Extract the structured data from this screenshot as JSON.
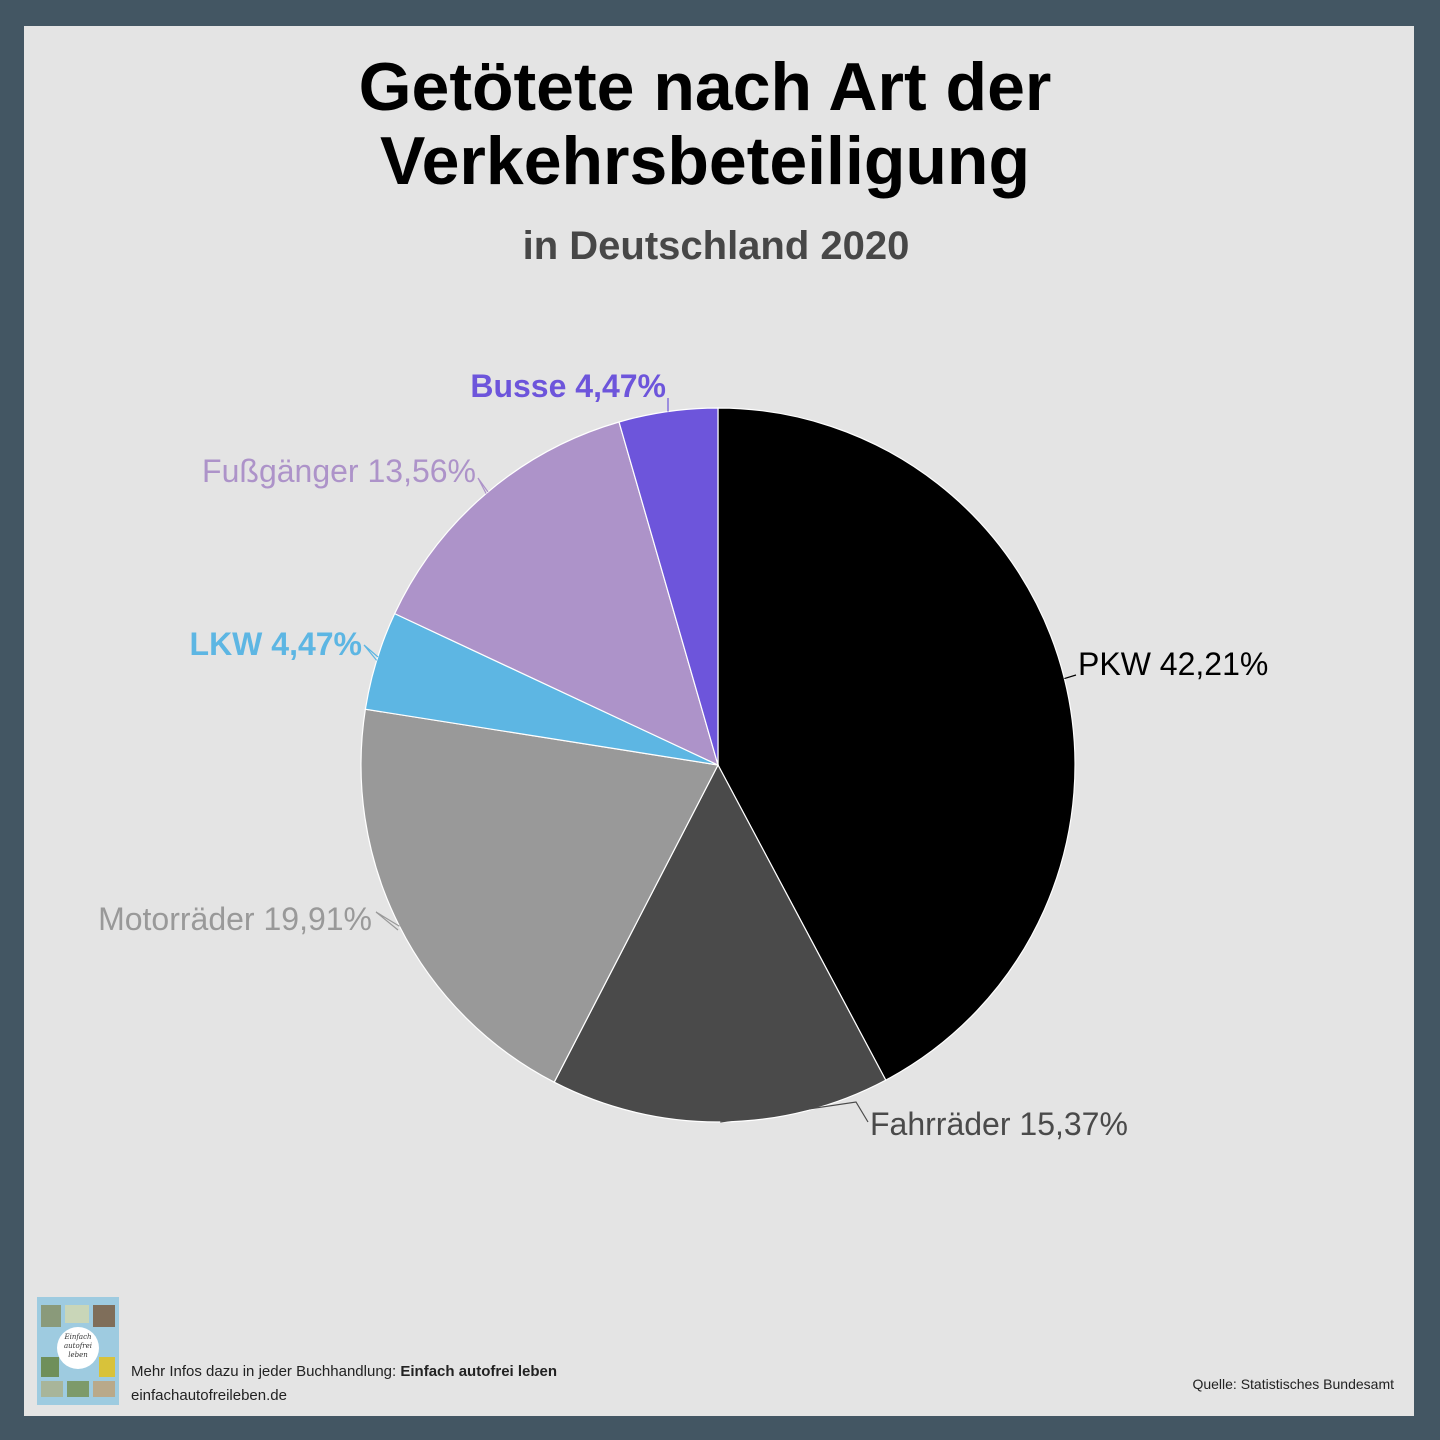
{
  "header": {
    "title_line1": "Getötete nach Art der",
    "title_line2": "Verkehrsbeteiligung",
    "subtitle": "in Deutschland 2020"
  },
  "chart_data": {
    "type": "pie",
    "title": "Getötete nach Art der Verkehrsbeteiligung",
    "subtitle": "in Deutschland 2020",
    "labels": [
      "PKW",
      "Fahrräder",
      "Motorräder",
      "LKW",
      "Fußgänger",
      "Busse"
    ],
    "values": [
      42.21,
      15.37,
      19.91,
      4.47,
      13.56,
      4.47
    ],
    "value_labels": [
      "42,21%",
      "15,37%",
      "19,91%",
      "4,47%",
      "13,56%",
      "4,47%"
    ],
    "colors": [
      "#000000",
      "#4a4a4a",
      "#999999",
      "#5db6e3",
      "#ad93c9",
      "#6d55db"
    ],
    "label_colors": [
      "#000000",
      "#4a4a4a",
      "#999999",
      "#5db6e3",
      "#ad93c9",
      "#6d55db"
    ],
    "start_angle": "top",
    "direction": "clockwise",
    "legend": "none"
  },
  "footer": {
    "book_title_art": "Einfach autofrei leben",
    "info_prefix": "Mehr Infos dazu in jeder Buchhandlung:",
    "info_book": "Einfach autofrei leben",
    "website": "einfachautofreileben.de",
    "source": "Quelle: Statistisches Bundesamt"
  }
}
